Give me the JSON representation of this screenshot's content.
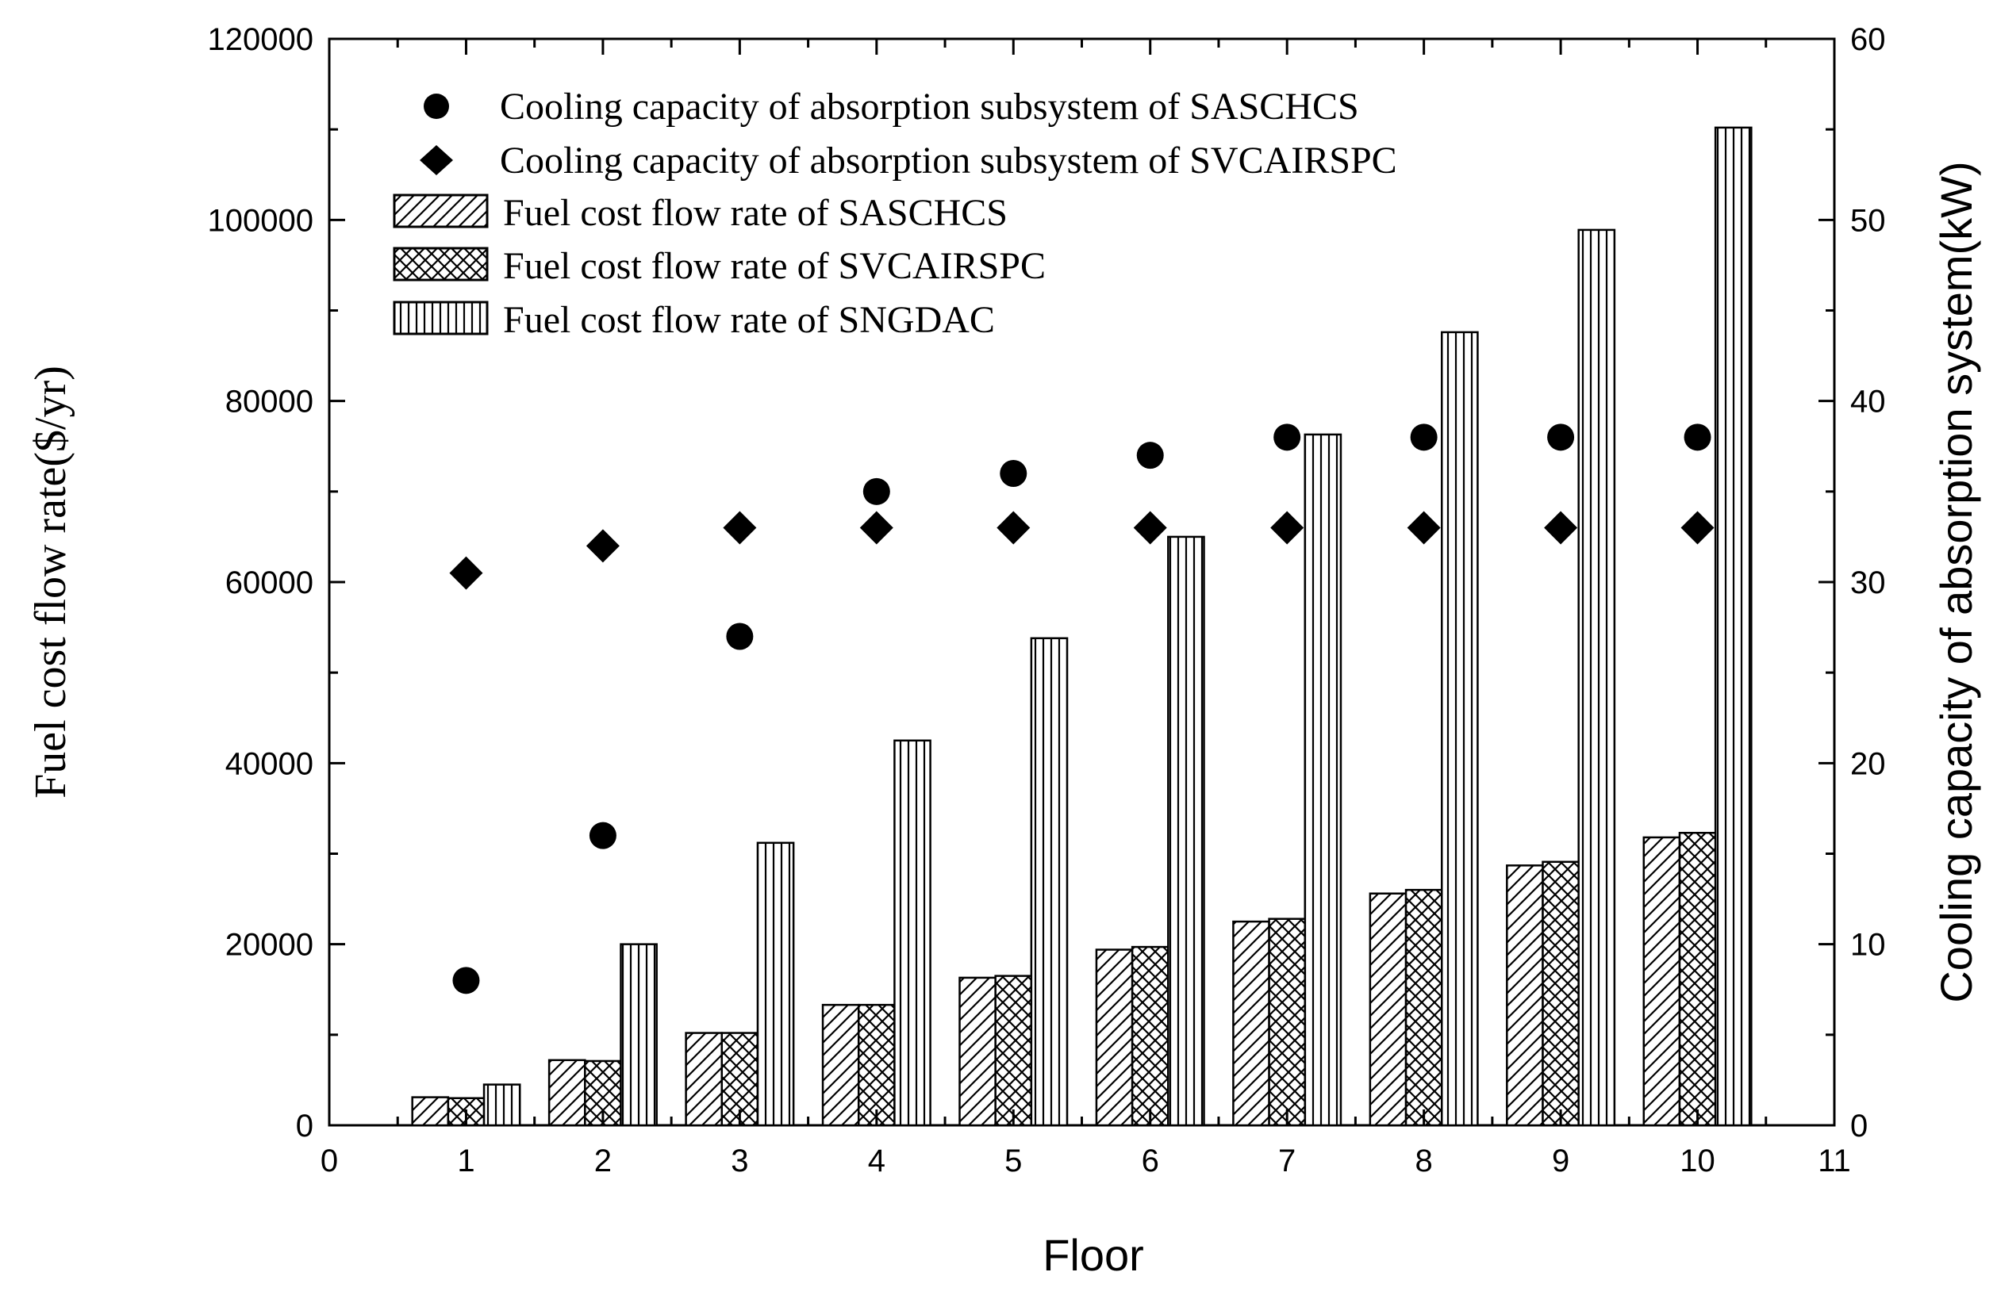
{
  "chart_data": {
    "type": "bar",
    "x_label": "Floor",
    "y_left_label": "Fuel cost flow rate($/yr)",
    "y_right_label": "Cooling capacity of absorption system(kW)",
    "x_range": [
      0,
      11
    ],
    "y_left_range": [
      0,
      120000
    ],
    "y_right_range": [
      0,
      60
    ],
    "x_ticks": [
      "0",
      "1",
      "2",
      "3",
      "4",
      "5",
      "6",
      "7",
      "8",
      "9",
      "10",
      "11"
    ],
    "y_left_ticks": [
      "0",
      "20000",
      "40000",
      "60000",
      "80000",
      "100000",
      "120000"
    ],
    "y_right_ticks": [
      "0",
      "10",
      "20",
      "30",
      "40",
      "50",
      "60"
    ],
    "categories": [
      1,
      2,
      3,
      4,
      5,
      6,
      7,
      8,
      9,
      10
    ],
    "bar_series": [
      {
        "name": "Fuel cost flow rate of SASCHCS",
        "pattern": "diagonal",
        "values": [
          3100,
          7200,
          10200,
          13300,
          16300,
          19400,
          22500,
          25600,
          28700,
          31800
        ]
      },
      {
        "name": "Fuel cost flow rate of SVCAIRSPC",
        "pattern": "crosshatch",
        "values": [
          3000,
          7100,
          10200,
          13300,
          16500,
          19700,
          22800,
          26000,
          29100,
          32300
        ]
      },
      {
        "name": "Fuel cost flow rate of SNGDAC",
        "pattern": "vertical",
        "values": [
          4500,
          20000,
          31200,
          42500,
          53800,
          65000,
          76300,
          87600,
          98900,
          110200
        ]
      }
    ],
    "scatter_series": [
      {
        "name": "Cooling capacity of absorption subsystem of SASCHCS",
        "marker": "circle",
        "axis": "right",
        "values": [
          8,
          16,
          27,
          35,
          36,
          37,
          38,
          38,
          38,
          38
        ]
      },
      {
        "name": "Cooling capacity of absorption subsystem of SVCAIRSPC",
        "marker": "diamond",
        "axis": "right",
        "values": [
          30.5,
          32,
          33,
          33,
          33,
          33,
          33,
          33,
          33,
          33
        ]
      }
    ],
    "legend_position": "top-left",
    "grid": false
  }
}
